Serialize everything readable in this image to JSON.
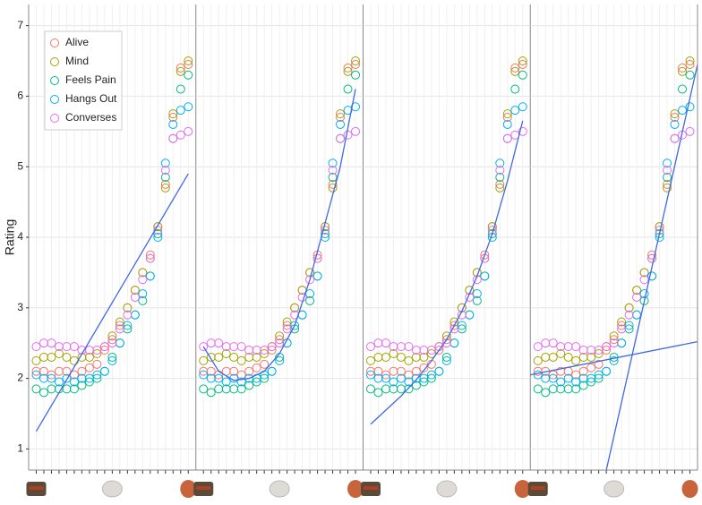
{
  "chart_data": {
    "type": "scatter",
    "y_label": "Rating",
    "x": [
      0,
      5,
      10,
      15,
      20,
      25,
      30,
      35,
      40,
      45,
      50,
      55,
      60,
      65,
      70,
      75,
      80,
      85,
      90,
      95,
      100
    ],
    "xlim": [
      -5,
      105
    ],
    "ylim": [
      0.7,
      7.3
    ],
    "yticks": [
      1,
      2,
      3,
      4,
      5,
      6,
      7
    ],
    "grid": true,
    "legend": "top-left",
    "series": [
      {
        "name": "Alive",
        "color": "#F8766D",
        "values": [
          2.1,
          2.1,
          2.05,
          2.1,
          2.1,
          2.05,
          2.1,
          2.15,
          2.2,
          2.4,
          2.55,
          2.75,
          3.0,
          3.25,
          3.5,
          3.75,
          4.15,
          4.75,
          5.7,
          6.4,
          6.45
        ]
      },
      {
        "name": "Mind",
        "color": "#A3A500",
        "values": [
          2.25,
          2.3,
          2.3,
          2.35,
          2.3,
          2.25,
          2.3,
          2.3,
          2.35,
          2.45,
          2.6,
          2.8,
          3.0,
          3.25,
          3.5,
          3.7,
          4.15,
          4.7,
          5.75,
          6.35,
          6.5
        ]
      },
      {
        "name": "Feels Pain",
        "color": "#00BF7D",
        "values": [
          1.85,
          1.8,
          1.85,
          1.85,
          1.85,
          1.85,
          1.9,
          1.95,
          2.0,
          2.1,
          2.3,
          2.5,
          2.7,
          2.9,
          3.1,
          3.45,
          4.05,
          4.85,
          5.4,
          6.1,
          6.3
        ]
      },
      {
        "name": "Hangs Out",
        "color": "#00B0F6",
        "values": [
          2.05,
          2.0,
          2.0,
          1.95,
          2.0,
          1.95,
          2.0,
          2.0,
          2.05,
          2.1,
          2.25,
          2.5,
          2.75,
          2.9,
          3.2,
          3.45,
          4.0,
          5.05,
          5.6,
          5.8,
          5.85
        ]
      },
      {
        "name": "Converses",
        "color": "#E76BF3",
        "values": [
          2.45,
          2.5,
          2.5,
          2.45,
          2.45,
          2.45,
          2.4,
          2.4,
          2.4,
          2.45,
          2.5,
          2.7,
          2.9,
          3.15,
          3.4,
          3.7,
          4.1,
          4.95,
          5.4,
          5.45,
          5.5
        ]
      }
    ],
    "fit_color": "#4169E1",
    "fits": [
      [
        {
          "x": [
            0,
            100
          ],
          "y": [
            1.25,
            4.9
          ]
        }
      ],
      [
        {
          "x": [
            0,
            10,
            20,
            30,
            40,
            50,
            60,
            70,
            80,
            90,
            100
          ],
          "y": [
            2.45,
            2.1,
            1.97,
            2.0,
            2.1,
            2.35,
            2.75,
            3.4,
            4.2,
            5.0,
            6.1
          ]
        }
      ],
      [
        {
          "x": [
            0,
            10,
            20,
            30,
            40,
            50,
            60,
            70,
            80,
            90,
            100
          ],
          "y": [
            1.35,
            1.55,
            1.75,
            1.98,
            2.25,
            2.55,
            2.95,
            3.45,
            4.05,
            4.8,
            5.65
          ]
        }
      ],
      [
        {
          "x": [
            -5,
            105
          ],
          "y": [
            2.05,
            2.52
          ]
        },
        {
          "x": [
            45,
            105
          ],
          "y": [
            0.7,
            6.45
          ]
        }
      ]
    ]
  }
}
